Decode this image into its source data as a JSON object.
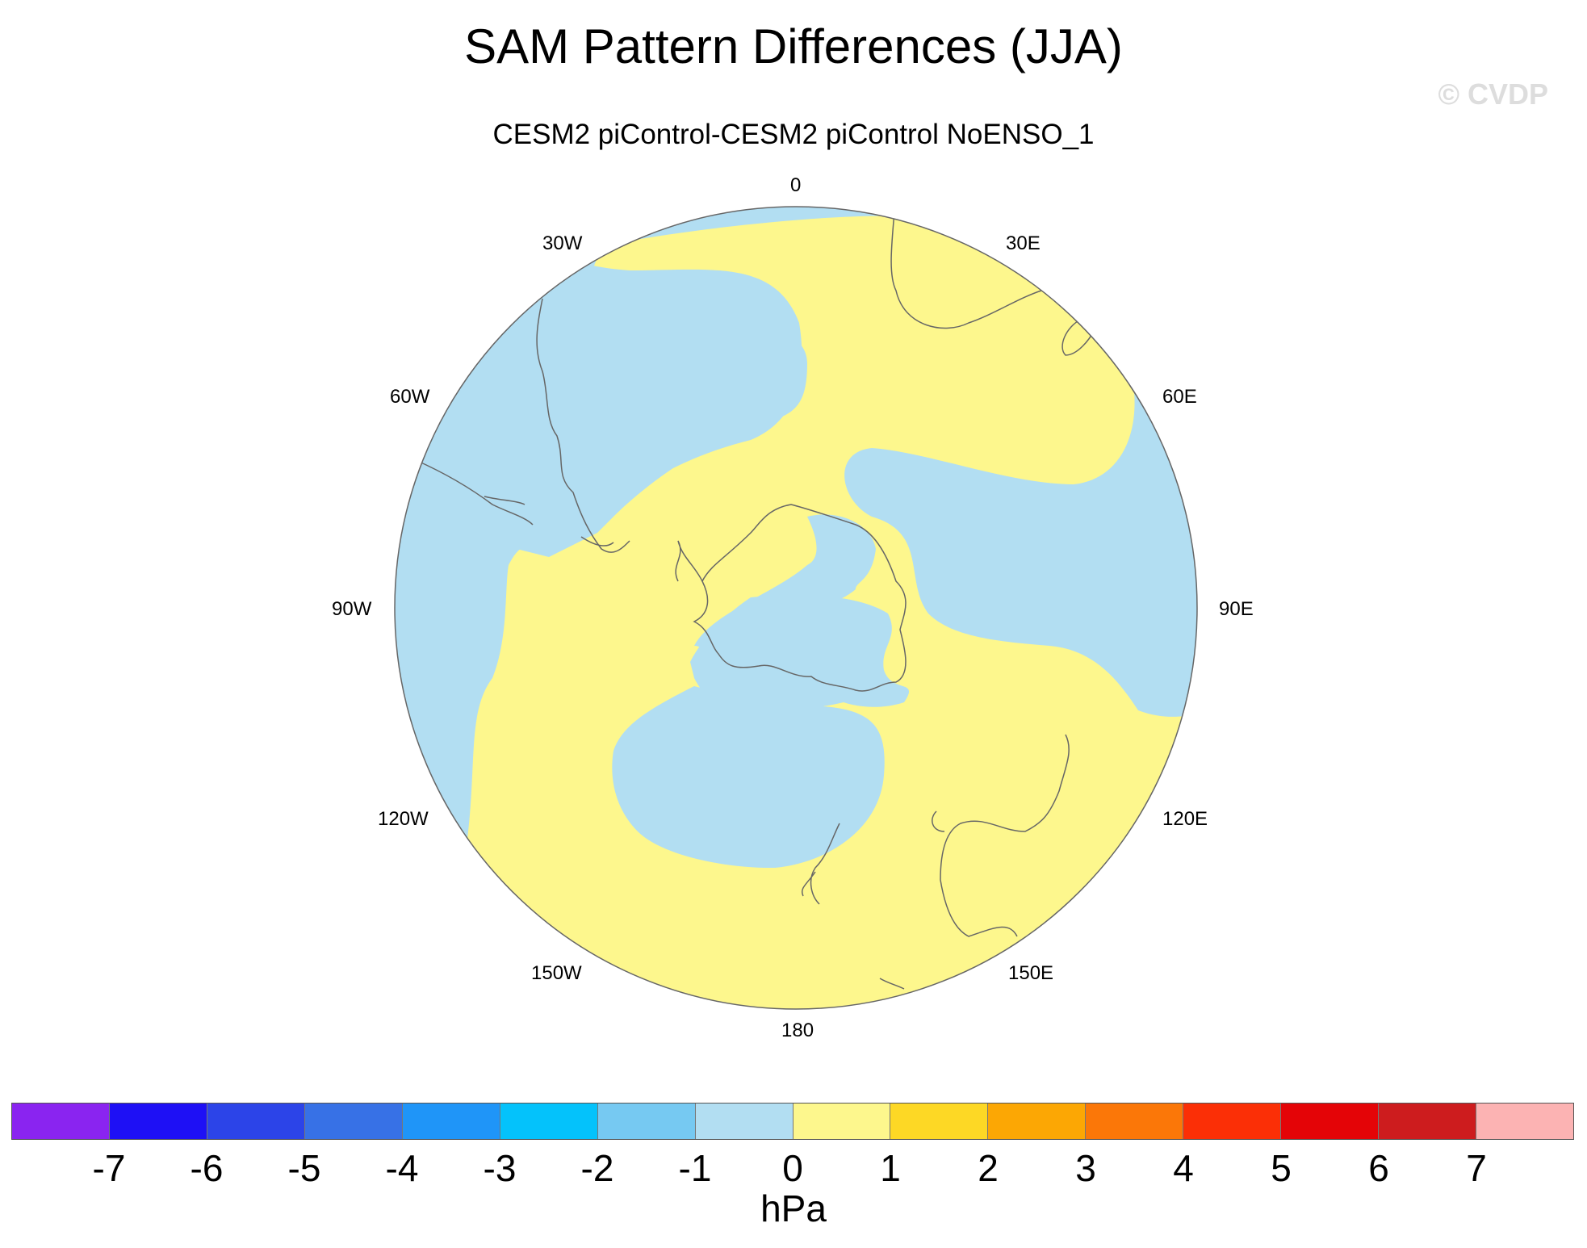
{
  "title": "SAM Pattern Differences (JJA)",
  "subtitle": "CESM2 piControl-CESM2 piControl NoENSO_1",
  "watermark": "© CVDP",
  "longitude_labels": {
    "lon_0": "0",
    "lon_30e": "30E",
    "lon_60e": "60E",
    "lon_90e": "90E",
    "lon_120e": "120E",
    "lon_150e": "150E",
    "lon_180": "180",
    "lon_150w": "150W",
    "lon_120w": "120W",
    "lon_90w": "90W",
    "lon_60w": "60W",
    "lon_30w": "30W"
  },
  "colorbar": {
    "colors": [
      "#8a24f0",
      "#1e10f5",
      "#2c44e8",
      "#3771e6",
      "#1f95f8",
      "#04c2fb",
      "#76c9f2",
      "#b2def2",
      "#fdf78d",
      "#fdd825",
      "#fca704",
      "#fb7708",
      "#fb2f06",
      "#e40407",
      "#cd1c1e",
      "#fcb3b3"
    ],
    "tick_labels": [
      "-7",
      "-6",
      "-5",
      "-4",
      "-3",
      "-2",
      "-1",
      "0",
      "1",
      "2",
      "3",
      "4",
      "5",
      "6",
      "7"
    ],
    "units": "hPa"
  },
  "fill_colors": {
    "neg_0_to_-1": "#b2def2",
    "pos_0_to_1": "#fdf78d",
    "coast": "#666666"
  }
}
